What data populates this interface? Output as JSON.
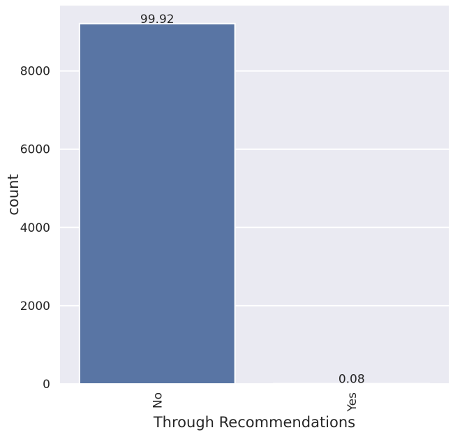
{
  "chart_data": {
    "type": "bar",
    "categories": [
      "No",
      "Yes"
    ],
    "values": [
      9209,
      7
    ],
    "data_labels": [
      "99.92",
      "0.08"
    ],
    "xlabel": "Through Recommendations",
    "ylabel": "count",
    "ylim": [
      0,
      9670
    ],
    "yticks": [
      0,
      2000,
      4000,
      6000,
      8000
    ],
    "ytick_labels": [
      "0",
      "2000",
      "4000",
      "6000",
      "8000"
    ],
    "grid": true,
    "x_tick_rotation": "vertical",
    "colors": {
      "background": "#eaeaf2",
      "bar": "#5975a4",
      "grid": "#ffffff",
      "text": "#262626"
    }
  }
}
